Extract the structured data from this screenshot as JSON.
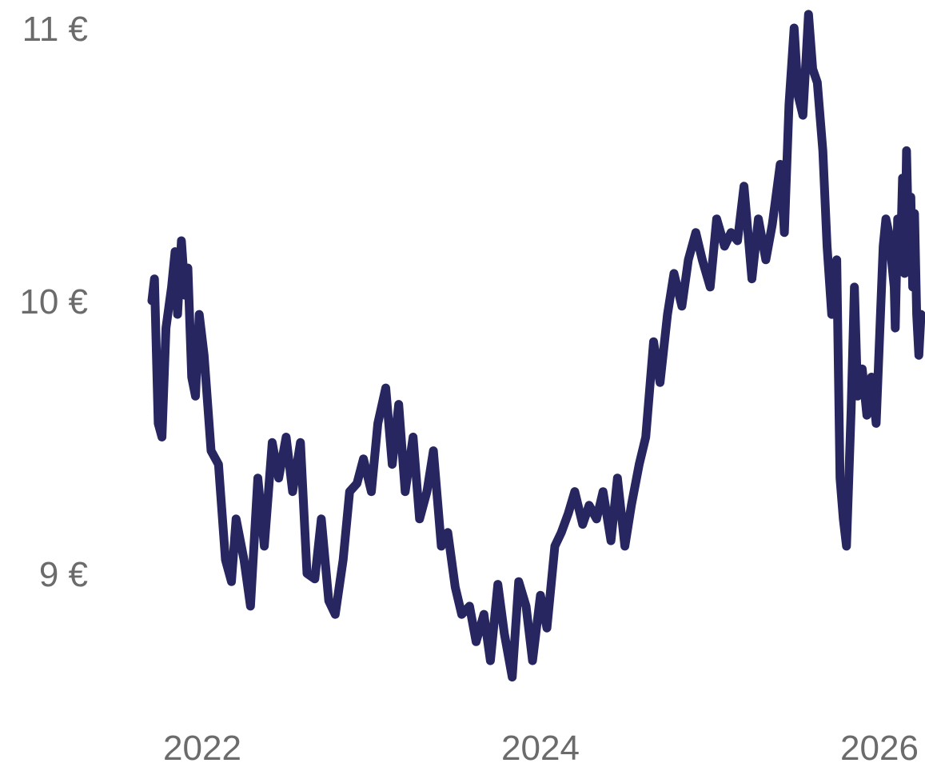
{
  "chart_data": {
    "type": "line",
    "title": "",
    "xlabel": "",
    "ylabel": "",
    "y_ticks": [
      {
        "value": 9,
        "label": "9 €"
      },
      {
        "value": 10,
        "label": "10 €"
      },
      {
        "value": 11,
        "label": "11 €"
      }
    ],
    "x_ticks": [
      {
        "value": "2022-01-01",
        "label": "2022"
      },
      {
        "value": "2024-01-01",
        "label": "2024"
      },
      {
        "value": "2026-01-01",
        "label": "2026"
      }
    ],
    "ylim": [
      8.4,
      11.1
    ],
    "xlim": [
      "2021-06-01",
      "2026-04-01"
    ],
    "grid": false,
    "legend": "none",
    "series": [
      {
        "color": "#272660",
        "points": [
          [
            "2021-06-15",
            10.0
          ],
          [
            "2021-06-25",
            10.08
          ],
          [
            "2021-07-10",
            9.55
          ],
          [
            "2021-07-25",
            9.5
          ],
          [
            "2021-08-10",
            9.9
          ],
          [
            "2021-09-01",
            10.05
          ],
          [
            "2021-09-15",
            10.18
          ],
          [
            "2021-09-25",
            9.95
          ],
          [
            "2021-10-10",
            10.22
          ],
          [
            "2021-10-25",
            10.02
          ],
          [
            "2021-11-05",
            10.12
          ],
          [
            "2021-11-20",
            9.72
          ],
          [
            "2021-12-05",
            9.65
          ],
          [
            "2021-12-20",
            9.95
          ],
          [
            "2022-01-05",
            9.8
          ],
          [
            "2022-01-20",
            9.45
          ],
          [
            "2022-02-05",
            9.4
          ],
          [
            "2022-02-20",
            9.05
          ],
          [
            "2022-03-05",
            8.97
          ],
          [
            "2022-03-15",
            9.2
          ],
          [
            "2022-04-01",
            9.05
          ],
          [
            "2022-04-15",
            8.88
          ],
          [
            "2022-05-01",
            9.35
          ],
          [
            "2022-05-15",
            9.1
          ],
          [
            "2022-06-01",
            9.48
          ],
          [
            "2022-06-15",
            9.35
          ],
          [
            "2022-07-01",
            9.5
          ],
          [
            "2022-07-15",
            9.3
          ],
          [
            "2022-08-01",
            9.48
          ],
          [
            "2022-08-15",
            9.0
          ],
          [
            "2022-09-01",
            8.98
          ],
          [
            "2022-09-15",
            9.2
          ],
          [
            "2022-10-01",
            8.9
          ],
          [
            "2022-10-15",
            8.85
          ],
          [
            "2022-11-01",
            9.05
          ],
          [
            "2022-11-15",
            9.3
          ],
          [
            "2022-12-01",
            9.33
          ],
          [
            "2022-12-15",
            9.42
          ],
          [
            "2023-01-01",
            9.3
          ],
          [
            "2023-01-15",
            9.55
          ],
          [
            "2023-02-01",
            9.68
          ],
          [
            "2023-02-15",
            9.4
          ],
          [
            "2023-03-01",
            9.62
          ],
          [
            "2023-03-15",
            9.3
          ],
          [
            "2023-04-01",
            9.5
          ],
          [
            "2023-04-15",
            9.2
          ],
          [
            "2023-05-01",
            9.3
          ],
          [
            "2023-05-15",
            9.45
          ],
          [
            "2023-06-01",
            9.1
          ],
          [
            "2023-06-15",
            9.15
          ],
          [
            "2023-07-01",
            8.95
          ],
          [
            "2023-07-15",
            8.85
          ],
          [
            "2023-08-01",
            8.88
          ],
          [
            "2023-08-15",
            8.75
          ],
          [
            "2023-09-01",
            8.85
          ],
          [
            "2023-09-15",
            8.68
          ],
          [
            "2023-10-01",
            8.96
          ],
          [
            "2023-10-15",
            8.78
          ],
          [
            "2023-11-01",
            8.62
          ],
          [
            "2023-11-15",
            8.97
          ],
          [
            "2023-12-01",
            8.88
          ],
          [
            "2023-12-15",
            8.68
          ],
          [
            "2024-01-01",
            8.92
          ],
          [
            "2024-01-15",
            8.8
          ],
          [
            "2024-02-01",
            9.1
          ],
          [
            "2024-02-15",
            9.15
          ],
          [
            "2024-03-01",
            9.22
          ],
          [
            "2024-03-15",
            9.3
          ],
          [
            "2024-04-01",
            9.18
          ],
          [
            "2024-04-15",
            9.25
          ],
          [
            "2024-05-01",
            9.2
          ],
          [
            "2024-05-15",
            9.3
          ],
          [
            "2024-06-01",
            9.12
          ],
          [
            "2024-06-15",
            9.35
          ],
          [
            "2024-07-01",
            9.1
          ],
          [
            "2024-07-15",
            9.25
          ],
          [
            "2024-08-01",
            9.4
          ],
          [
            "2024-08-15",
            9.5
          ],
          [
            "2024-09-01",
            9.85
          ],
          [
            "2024-09-15",
            9.7
          ],
          [
            "2024-10-01",
            9.95
          ],
          [
            "2024-10-15",
            10.1
          ],
          [
            "2024-11-01",
            9.98
          ],
          [
            "2024-11-15",
            10.15
          ],
          [
            "2024-12-01",
            10.25
          ],
          [
            "2024-12-15",
            10.15
          ],
          [
            "2025-01-01",
            10.05
          ],
          [
            "2025-01-15",
            10.3
          ],
          [
            "2025-02-01",
            10.2
          ],
          [
            "2025-02-15",
            10.25
          ],
          [
            "2025-03-01",
            10.22
          ],
          [
            "2025-03-15",
            10.42
          ],
          [
            "2025-04-01",
            10.08
          ],
          [
            "2025-04-15",
            10.3
          ],
          [
            "2025-05-01",
            10.15
          ],
          [
            "2025-05-15",
            10.28
          ],
          [
            "2025-06-01",
            10.5
          ],
          [
            "2025-06-10",
            10.25
          ],
          [
            "2025-06-20",
            10.72
          ],
          [
            "2025-07-01",
            11.0
          ],
          [
            "2025-07-10",
            10.75
          ],
          [
            "2025-07-20",
            10.68
          ],
          [
            "2025-08-01",
            11.05
          ],
          [
            "2025-08-10",
            10.85
          ],
          [
            "2025-08-20",
            10.8
          ],
          [
            "2025-09-01",
            10.55
          ],
          [
            "2025-09-10",
            10.2
          ],
          [
            "2025-09-20",
            9.95
          ],
          [
            "2025-10-01",
            10.15
          ],
          [
            "2025-10-08",
            9.35
          ],
          [
            "2025-10-15",
            9.2
          ],
          [
            "2025-10-22",
            9.1
          ],
          [
            "2025-11-01",
            9.6
          ],
          [
            "2025-11-08",
            10.05
          ],
          [
            "2025-11-15",
            9.65
          ],
          [
            "2025-11-25",
            9.75
          ],
          [
            "2025-12-05",
            9.58
          ],
          [
            "2025-12-15",
            9.72
          ],
          [
            "2025-12-25",
            9.55
          ],
          [
            "2026-01-05",
            9.95
          ],
          [
            "2026-01-15",
            10.2
          ],
          [
            "2026-01-25",
            10.3
          ],
          [
            "2026-02-05",
            10.25
          ],
          [
            "2026-02-15",
            10.15
          ],
          [
            "2026-02-25",
            10.05
          ],
          [
            "2026-03-01",
            9.9
          ],
          [
            "2026-03-10",
            10.3
          ],
          [
            "2026-03-20",
            10.15
          ],
          [
            "2026-03-28",
            10.45
          ],
          [
            "2026-04-05",
            10.1
          ],
          [
            "2026-04-12",
            10.55
          ],
          [
            "2026-04-20",
            10.2
          ],
          [
            "2026-04-28",
            10.38
          ],
          [
            "2026-05-05",
            10.05
          ],
          [
            "2026-05-12",
            10.32
          ],
          [
            "2026-05-20",
            9.95
          ],
          [
            "2026-05-28",
            9.8
          ],
          [
            "2026-06-05",
            9.95
          ]
        ]
      }
    ]
  }
}
